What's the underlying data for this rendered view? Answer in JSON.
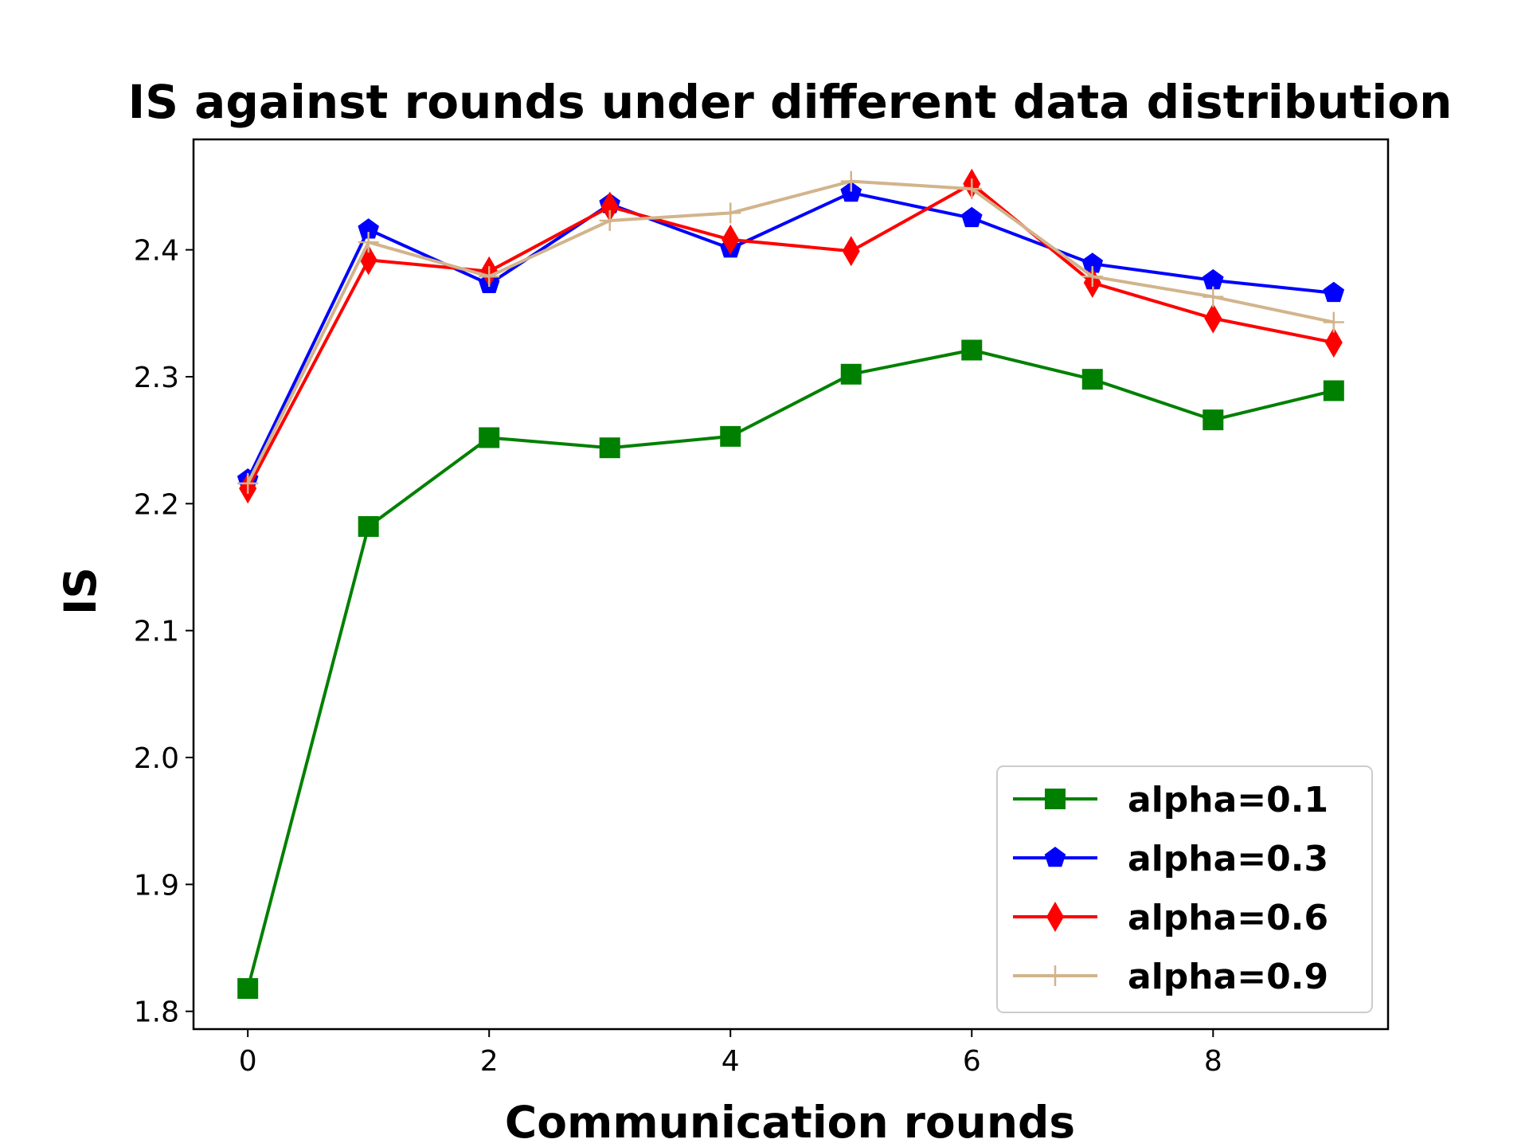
{
  "chart_data": {
    "type": "line",
    "title": "IS against rounds under different data distribution",
    "xlabel": "Communication rounds",
    "ylabel": "IS",
    "x": [
      0,
      1,
      2,
      3,
      4,
      5,
      6,
      7,
      8,
      9
    ],
    "xlim": [
      -0.45,
      9.45
    ],
    "ylim": [
      1.786,
      2.487
    ],
    "xticks": [
      0,
      2,
      4,
      6,
      8
    ],
    "xtick_labels": [
      "0",
      "2",
      "4",
      "6",
      "8"
    ],
    "yticks": [
      1.8,
      1.9,
      2.0,
      2.1,
      2.2,
      2.3,
      2.4
    ],
    "ytick_labels": [
      "1.8",
      "1.9",
      "2.0",
      "2.1",
      "2.2",
      "2.3",
      "2.4"
    ],
    "grid": false,
    "legend_position": "lower-right",
    "series": [
      {
        "name": "alpha=0.1",
        "color": "#008000",
        "marker": "square",
        "values": [
          1.818,
          2.182,
          2.252,
          2.244,
          2.253,
          2.302,
          2.321,
          2.298,
          2.266,
          2.289
        ]
      },
      {
        "name": "alpha=0.3",
        "color": "#0000ff",
        "marker": "pentagon",
        "values": [
          2.219,
          2.416,
          2.373,
          2.436,
          2.401,
          2.445,
          2.425,
          2.389,
          2.376,
          2.366
        ]
      },
      {
        "name": "alpha=0.6",
        "color": "#ff0000",
        "marker": "thin-diamond",
        "values": [
          2.212,
          2.392,
          2.383,
          2.434,
          2.408,
          2.399,
          2.452,
          2.374,
          2.346,
          2.327
        ]
      },
      {
        "name": "alpha=0.9",
        "color": "#d2b48c",
        "marker": "plus",
        "values": [
          2.216,
          2.406,
          2.379,
          2.423,
          2.429,
          2.454,
          2.448,
          2.379,
          2.363,
          2.343
        ]
      }
    ]
  }
}
